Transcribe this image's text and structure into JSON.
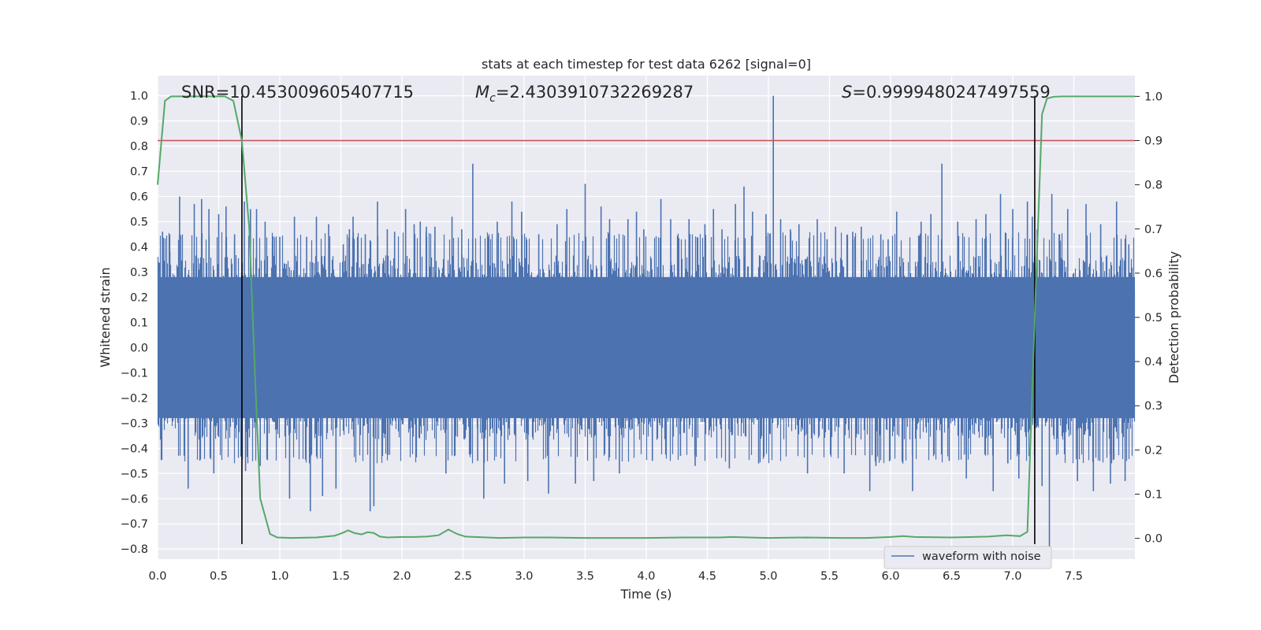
{
  "chart_data": {
    "type": "line",
    "title": "stats at each timestep for test data 6262 [signal=0]",
    "xlabel": "Time (s)",
    "ylabel_left": "Whitened strain",
    "ylabel_right": "Detection probability",
    "xlim": [
      0.0,
      8.0
    ],
    "ylim_left": [
      -0.84,
      1.08
    ],
    "ylim_right": [
      -0.047,
      1.047
    ],
    "x_ticks": [
      "0.0",
      "0.5",
      "1.0",
      "1.5",
      "2.0",
      "2.5",
      "3.0",
      "3.5",
      "4.0",
      "4.5",
      "5.0",
      "5.5",
      "6.0",
      "6.5",
      "7.0",
      "7.5"
    ],
    "x_tick_values": [
      0.0,
      0.5,
      1.0,
      1.5,
      2.0,
      2.5,
      3.0,
      3.5,
      4.0,
      4.5,
      5.0,
      5.5,
      6.0,
      6.5,
      7.0,
      7.5
    ],
    "y_left_ticks": [
      "1.0",
      "0.9",
      "0.8",
      "0.7",
      "0.6",
      "0.5",
      "0.4",
      "0.3",
      "0.2",
      "0.1",
      "0.0",
      "−0.1",
      "−0.2",
      "−0.3",
      "−0.4",
      "−0.5",
      "−0.6",
      "−0.7",
      "−0.8"
    ],
    "y_left_tick_values": [
      1.0,
      0.9,
      0.8,
      0.7,
      0.6,
      0.5,
      0.4,
      0.3,
      0.2,
      0.1,
      0.0,
      -0.1,
      -0.2,
      -0.3,
      -0.4,
      -0.5,
      -0.6,
      -0.7,
      -0.8
    ],
    "y_right_ticks": [
      "1.0",
      "0.9",
      "0.8",
      "0.7",
      "0.6",
      "0.5",
      "0.4",
      "0.3",
      "0.2",
      "0.1",
      "0.0"
    ],
    "y_right_tick_values": [
      1.0,
      0.9,
      0.8,
      0.7,
      0.6,
      0.5,
      0.4,
      0.3,
      0.2,
      0.1,
      0.0
    ],
    "annotations": {
      "snr": "SNR=10.453009605407715",
      "mc_symbol": "M",
      "mc_sub": "c",
      "mc_value": "=2.4303910732269287",
      "s_symbol": "S",
      "s_value": "=0.9999480247497559"
    },
    "threshold": 0.9,
    "threshold_color": "#c44e52",
    "vertical_lines_x": [
      0.69,
      7.18
    ],
    "waveform": {
      "name": "waveform with noise",
      "color": "#4c72b0",
      "envelope_hi": 0.4,
      "envelope_lo": -0.4,
      "spikes": [
        [
          0.04,
          0.46
        ],
        [
          0.1,
          0.38
        ],
        [
          0.18,
          0.6
        ],
        [
          0.25,
          -0.56
        ],
        [
          0.3,
          0.57
        ],
        [
          0.36,
          0.59
        ],
        [
          0.42,
          0.55
        ],
        [
          0.46,
          -0.5
        ],
        [
          0.5,
          0.53
        ],
        [
          0.56,
          0.56
        ],
        [
          0.63,
          0.45
        ],
        [
          0.71,
          0.58
        ],
        [
          0.72,
          -0.49
        ],
        [
          0.76,
          0.55
        ],
        [
          0.81,
          0.55
        ],
        [
          0.84,
          -0.47
        ],
        [
          0.88,
          0.5
        ],
        [
          0.94,
          0.42
        ],
        [
          1.0,
          0.44
        ],
        [
          1.08,
          -0.6
        ],
        [
          1.12,
          0.52
        ],
        [
          1.22,
          0.44
        ],
        [
          1.25,
          -0.65
        ],
        [
          1.3,
          0.52
        ],
        [
          1.35,
          -0.59
        ],
        [
          1.4,
          0.49
        ],
        [
          1.46,
          -0.56
        ],
        [
          1.52,
          0.41
        ],
        [
          1.57,
          0.47
        ],
        [
          1.6,
          0.52
        ],
        [
          1.7,
          0.45
        ],
        [
          1.74,
          -0.65
        ],
        [
          1.77,
          -0.63
        ],
        [
          1.8,
          0.58
        ],
        [
          1.88,
          0.47
        ],
        [
          1.94,
          0.46
        ],
        [
          2.03,
          0.55
        ],
        [
          2.1,
          0.49
        ],
        [
          2.15,
          0.5
        ],
        [
          2.2,
          0.48
        ],
        [
          2.27,
          0.48
        ],
        [
          2.36,
          -0.5
        ],
        [
          2.41,
          0.52
        ],
        [
          2.49,
          0.47
        ],
        [
          2.58,
          0.73
        ],
        [
          2.62,
          -0.45
        ],
        [
          2.67,
          -0.6
        ],
        [
          2.78,
          0.5
        ],
        [
          2.84,
          -0.54
        ],
        [
          2.9,
          0.58
        ],
        [
          2.98,
          0.54
        ],
        [
          3.03,
          -0.53
        ],
        [
          3.12,
          0.45
        ],
        [
          3.2,
          -0.58
        ],
        [
          3.27,
          0.49
        ],
        [
          3.35,
          0.55
        ],
        [
          3.42,
          -0.54
        ],
        [
          3.5,
          0.65
        ],
        [
          3.57,
          -0.53
        ],
        [
          3.63,
          0.56
        ],
        [
          3.7,
          0.51
        ],
        [
          3.78,
          -0.5
        ],
        [
          3.85,
          0.51
        ],
        [
          3.92,
          0.54
        ],
        [
          3.98,
          0.47
        ],
        [
          4.05,
          -0.45
        ],
        [
          4.12,
          0.59
        ],
        [
          4.2,
          0.51
        ],
        [
          4.28,
          -0.43
        ],
        [
          4.35,
          0.51
        ],
        [
          4.4,
          -0.47
        ],
        [
          4.48,
          0.49
        ],
        [
          4.55,
          0.55
        ],
        [
          4.62,
          0.47
        ],
        [
          4.68,
          -0.48
        ],
        [
          4.73,
          0.57
        ],
        [
          4.8,
          0.64
        ],
        [
          4.87,
          0.54
        ],
        [
          4.92,
          -0.46
        ],
        [
          4.98,
          0.53
        ],
        [
          5.04,
          1.0
        ],
        [
          5.1,
          0.51
        ],
        [
          5.18,
          0.47
        ],
        [
          5.25,
          0.49
        ],
        [
          5.32,
          -0.5
        ],
        [
          5.4,
          0.51
        ],
        [
          5.48,
          0.43
        ],
        [
          5.55,
          0.48
        ],
        [
          5.62,
          -0.5
        ],
        [
          5.69,
          0.46
        ],
        [
          5.76,
          0.48
        ],
        [
          5.83,
          -0.57
        ],
        [
          5.88,
          -0.47
        ],
        [
          5.92,
          0.45
        ],
        [
          5.98,
          0.43
        ],
        [
          6.05,
          0.54
        ],
        [
          6.1,
          -0.46
        ],
        [
          6.18,
          -0.57
        ],
        [
          6.25,
          0.5
        ],
        [
          6.33,
          0.53
        ],
        [
          6.42,
          0.73
        ],
        [
          6.48,
          -0.45
        ],
        [
          6.55,
          0.5
        ],
        [
          6.62,
          -0.52
        ],
        [
          6.7,
          0.51
        ],
        [
          6.78,
          0.53
        ],
        [
          6.84,
          -0.57
        ],
        [
          6.9,
          0.61
        ],
        [
          6.96,
          -0.46
        ],
        [
          7.0,
          0.55
        ],
        [
          7.05,
          -0.52
        ],
        [
          7.12,
          0.58
        ],
        [
          7.16,
          0.52
        ],
        [
          7.2,
          0.47
        ],
        [
          7.24,
          -0.55
        ],
        [
          7.3,
          -0.79
        ],
        [
          7.32,
          0.61
        ],
        [
          7.38,
          0.45
        ],
        [
          7.45,
          0.55
        ],
        [
          7.53,
          -0.53
        ],
        [
          7.6,
          0.57
        ],
        [
          7.66,
          -0.57
        ],
        [
          7.72,
          0.49
        ],
        [
          7.8,
          -0.54
        ],
        [
          7.85,
          0.58
        ],
        [
          7.92,
          -0.53
        ],
        [
          7.95,
          0.41
        ]
      ]
    },
    "probability": {
      "color": "#55a868",
      "x": [
        0.0,
        0.06,
        0.11,
        0.18,
        0.3,
        0.45,
        0.55,
        0.62,
        0.69,
        0.75,
        0.8,
        0.84,
        0.92,
        0.98,
        1.1,
        1.3,
        1.45,
        1.51,
        1.56,
        1.61,
        1.67,
        1.72,
        1.77,
        1.82,
        1.88,
        2.0,
        2.1,
        2.2,
        2.3,
        2.38,
        2.45,
        2.52,
        2.6,
        2.8,
        3.0,
        3.2,
        3.5,
        4.0,
        4.3,
        4.6,
        4.7,
        5.0,
        5.3,
        5.6,
        5.8,
        6.0,
        6.1,
        6.2,
        6.5,
        6.8,
        6.95,
        7.0,
        7.06,
        7.12,
        7.18,
        7.24,
        7.28,
        7.33,
        7.4,
        7.5,
        7.75,
        8.0
      ],
      "y": [
        0.8,
        0.99,
        1.0,
        1.0,
        1.0,
        1.0,
        1.0,
        0.99,
        0.9,
        0.7,
        0.35,
        0.09,
        0.01,
        0.002,
        0.001,
        0.002,
        0.006,
        0.012,
        0.018,
        0.012,
        0.009,
        0.014,
        0.012,
        0.004,
        0.002,
        0.003,
        0.003,
        0.004,
        0.007,
        0.02,
        0.01,
        0.004,
        0.003,
        0.001,
        0.002,
        0.002,
        0.001,
        0.001,
        0.002,
        0.002,
        0.003,
        0.001,
        0.002,
        0.001,
        0.001,
        0.003,
        0.005,
        0.003,
        0.002,
        0.004,
        0.007,
        0.006,
        0.005,
        0.015,
        0.5,
        0.96,
        0.995,
        0.999,
        1.0,
        1.0,
        1.0,
        1.0
      ]
    },
    "legend_location": "lower-right",
    "background_color": "#eaeaf2"
  }
}
